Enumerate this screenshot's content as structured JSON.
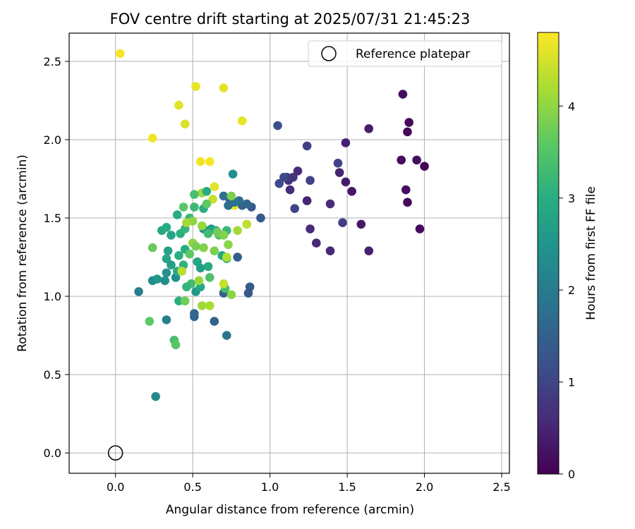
{
  "chart_data": {
    "type": "scatter",
    "title": "FOV centre drift starting at 2025/07/31 21:45:23",
    "xlabel": "Angular distance from reference (arcmin)",
    "ylabel": "Rotation from reference (arcmin)",
    "xlim": [
      -0.3,
      2.55
    ],
    "ylim": [
      -0.13,
      2.68
    ],
    "xticks": [
      0.0,
      0.5,
      1.0,
      1.5,
      2.0,
      2.5
    ],
    "yticks": [
      0.0,
      0.5,
      1.0,
      1.5,
      2.0,
      2.5
    ],
    "grid": true,
    "legend": {
      "position": "top-right",
      "entries": [
        {
          "label": "Reference platepar",
          "marker": "hollow-circle",
          "color": "#000000"
        }
      ]
    },
    "reference_point": {
      "x": 0.0,
      "y": 0.0
    },
    "colorbar": {
      "label": "Hours from first FF file",
      "colormap": "viridis",
      "range": [
        0,
        4.8
      ],
      "ticks": [
        0,
        1,
        2,
        3,
        4
      ]
    },
    "series": [
      {
        "color_variable": "Hours from first FF file",
        "points": [
          [
            0.03,
            2.55,
            4.75
          ],
          [
            0.24,
            2.01,
            4.7
          ],
          [
            0.45,
            2.1,
            4.55
          ],
          [
            0.41,
            2.22,
            4.6
          ],
          [
            0.52,
            2.34,
            4.65
          ],
          [
            0.7,
            2.33,
            4.6
          ],
          [
            0.82,
            2.12,
            4.65
          ],
          [
            0.55,
            1.86,
            4.7
          ],
          [
            0.61,
            1.86,
            4.75
          ],
          [
            0.64,
            1.7,
            4.6
          ],
          [
            0.77,
            1.58,
            4.7
          ],
          [
            0.63,
            1.62,
            4.4
          ],
          [
            0.56,
            1.66,
            4.1
          ],
          [
            1.86,
            2.29,
            0.15
          ],
          [
            1.9,
            2.11,
            0.1
          ],
          [
            1.89,
            2.05,
            0.1
          ],
          [
            1.85,
            1.87,
            0.15
          ],
          [
            1.95,
            1.87,
            0.2
          ],
          [
            2.0,
            1.83,
            0.05
          ],
          [
            1.88,
            1.68,
            0.2
          ],
          [
            1.89,
            1.6,
            0.1
          ],
          [
            1.97,
            1.43,
            0.15
          ],
          [
            1.64,
            2.07,
            0.4
          ],
          [
            1.49,
            1.98,
            0.45
          ],
          [
            1.53,
            1.67,
            0.3
          ],
          [
            1.49,
            1.73,
            0.35
          ],
          [
            1.59,
            1.46,
            0.3
          ],
          [
            1.64,
            1.29,
            0.45
          ],
          [
            1.39,
            1.29,
            0.55
          ],
          [
            1.39,
            1.59,
            0.6
          ],
          [
            1.3,
            1.34,
            0.55
          ],
          [
            1.26,
            1.43,
            0.6
          ],
          [
            1.24,
            1.61,
            0.5
          ],
          [
            1.45,
            1.79,
            0.5
          ],
          [
            1.44,
            1.85,
            0.95
          ],
          [
            1.47,
            1.47,
            0.9
          ],
          [
            1.24,
            1.96,
            0.9
          ],
          [
            1.26,
            1.74,
            0.95
          ],
          [
            1.18,
            1.8,
            0.6
          ],
          [
            1.13,
            1.68,
            0.6
          ],
          [
            1.12,
            1.74,
            0.7
          ],
          [
            1.11,
            1.76,
            0.85
          ],
          [
            1.15,
            1.76,
            0.75
          ],
          [
            1.09,
            1.76,
            1.05
          ],
          [
            1.06,
            1.72,
            1.1
          ],
          [
            1.05,
            2.09,
            1.2
          ],
          [
            1.16,
            1.56,
            1.0
          ],
          [
            0.94,
            1.5,
            1.35
          ],
          [
            0.88,
            1.57,
            1.4
          ],
          [
            0.82,
            1.58,
            1.55
          ],
          [
            0.85,
            1.59,
            1.6
          ],
          [
            0.8,
            1.61,
            1.7
          ],
          [
            0.77,
            1.6,
            1.9
          ],
          [
            0.74,
            1.62,
            1.6
          ],
          [
            0.7,
            1.64,
            1.8
          ],
          [
            0.73,
            1.58,
            1.75
          ],
          [
            0.76,
            1.78,
            2.4
          ],
          [
            0.79,
            1.25,
            1.45
          ],
          [
            0.87,
            1.06,
            1.4
          ],
          [
            0.86,
            1.02,
            1.35
          ],
          [
            0.7,
            1.02,
            1.5
          ],
          [
            0.72,
            0.75,
            1.85
          ],
          [
            0.64,
            0.84,
            1.55
          ],
          [
            0.51,
            0.89,
            1.55
          ],
          [
            0.51,
            0.87,
            1.6
          ],
          [
            0.26,
            0.36,
            2.25
          ],
          [
            0.15,
            1.03,
            2.05
          ],
          [
            0.33,
            0.85,
            2.1
          ],
          [
            0.24,
            1.1,
            2.3
          ],
          [
            0.27,
            1.11,
            2.55
          ],
          [
            0.32,
            1.1,
            2.4
          ],
          [
            0.33,
            1.15,
            2.45
          ],
          [
            0.39,
            1.12,
            2.35
          ],
          [
            0.3,
            1.42,
            2.9
          ],
          [
            0.33,
            1.44,
            2.95
          ],
          [
            0.36,
            1.39,
            2.8
          ],
          [
            0.34,
            1.29,
            2.75
          ],
          [
            0.33,
            1.24,
            2.85
          ],
          [
            0.36,
            1.2,
            2.7
          ],
          [
            0.4,
            1.16,
            2.95
          ],
          [
            0.41,
            1.26,
            3.05
          ],
          [
            0.44,
            1.2,
            3.1
          ],
          [
            0.45,
            1.3,
            3.0
          ],
          [
            0.42,
            1.4,
            3.05
          ],
          [
            0.45,
            1.43,
            3.15
          ],
          [
            0.4,
            1.52,
            3.0
          ],
          [
            0.48,
            1.5,
            3.2
          ],
          [
            0.51,
            1.57,
            3.25
          ],
          [
            0.51,
            1.65,
            3.4
          ],
          [
            0.44,
            1.57,
            3.55
          ],
          [
            0.57,
            1.56,
            3.05
          ],
          [
            0.59,
            1.67,
            2.95
          ],
          [
            0.57,
            1.43,
            2.5
          ],
          [
            0.62,
            1.43,
            2.7
          ],
          [
            0.65,
            1.42,
            3.0
          ],
          [
            0.6,
            1.4,
            3.3
          ],
          [
            0.67,
            1.39,
            3.45
          ],
          [
            0.72,
            1.42,
            3.2
          ],
          [
            0.69,
            1.26,
            2.85
          ],
          [
            0.72,
            1.24,
            3.3
          ],
          [
            0.71,
            1.05,
            3.4
          ],
          [
            0.6,
            1.19,
            2.95
          ],
          [
            0.55,
            1.18,
            2.7
          ],
          [
            0.53,
            1.22,
            2.85
          ],
          [
            0.52,
            1.03,
            2.6
          ],
          [
            0.55,
            1.06,
            2.9
          ],
          [
            0.61,
            1.12,
            3.45
          ],
          [
            0.49,
            1.08,
            3.3
          ],
          [
            0.46,
            1.06,
            3.15
          ],
          [
            0.41,
            0.97,
            3.05
          ],
          [
            0.45,
            0.97,
            3.75
          ],
          [
            0.38,
            0.72,
            3.4
          ],
          [
            0.22,
            0.84,
            3.6
          ],
          [
            0.24,
            1.31,
            3.7
          ],
          [
            0.39,
            0.69,
            3.55
          ],
          [
            0.48,
            1.27,
            3.6
          ],
          [
            0.5,
            1.34,
            4.0
          ],
          [
            0.52,
            1.32,
            3.8
          ],
          [
            0.57,
            1.31,
            3.9
          ],
          [
            0.56,
            1.45,
            4.05
          ],
          [
            0.5,
            1.48,
            3.95
          ],
          [
            0.46,
            1.47,
            4.15
          ],
          [
            0.54,
            1.1,
            4.05
          ],
          [
            0.56,
            0.94,
            4.1
          ],
          [
            0.61,
            0.94,
            4.2
          ],
          [
            0.64,
            1.29,
            3.85
          ],
          [
            0.66,
            1.41,
            3.75
          ],
          [
            0.7,
            1.39,
            3.9
          ],
          [
            0.73,
            1.33,
            3.95
          ],
          [
            0.72,
            1.25,
            4.25
          ],
          [
            0.7,
            1.08,
            4.4
          ],
          [
            0.75,
            1.01,
            3.95
          ],
          [
            0.79,
            1.42,
            4.15
          ],
          [
            0.85,
            1.46,
            4.35
          ],
          [
            0.75,
            1.64,
            3.85
          ],
          [
            0.59,
            1.59,
            3.6
          ],
          [
            0.43,
            1.16,
            4.3
          ]
        ]
      }
    ]
  }
}
